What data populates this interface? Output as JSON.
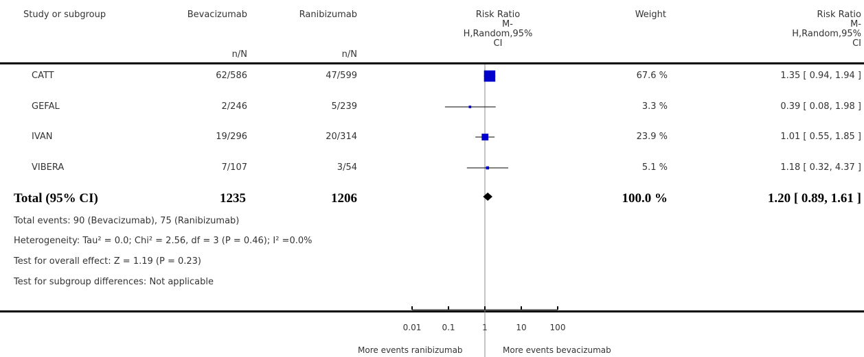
{
  "header": {
    "study": "Study or subgroup",
    "group1": "Bevacizumab",
    "group2": "Ranibizumab",
    "nN1": "n/N",
    "nN2": "n/N",
    "rr_plot": [
      "Risk Ratio",
      "M-",
      "H,Random,95%",
      "CI"
    ],
    "weight": "Weight",
    "rr_text": [
      "Risk Ratio",
      "M-",
      "H,Random,95%",
      "CI"
    ]
  },
  "rows": [
    {
      "study": "CATT",
      "g1": "62/586",
      "g2": "47/599",
      "weight": "67.6 %",
      "ci": "1.35 [ 0.94, 1.94 ]"
    },
    {
      "study": "GEFAL",
      "g1": "2/246",
      "g2": "5/239",
      "weight": "3.3 %",
      "ci": "0.39 [ 0.08, 1.98 ]"
    },
    {
      "study": "IVAN",
      "g1": "19/296",
      "g2": "20/314",
      "weight": "23.9 %",
      "ci": "1.01 [ 0.55, 1.85 ]"
    },
    {
      "study": "VIBERA",
      "g1": "7/107",
      "g2": "3/54",
      "weight": "5.1 %",
      "ci": "1.18 [ 0.32, 4.37 ]"
    }
  ],
  "total": {
    "label": "Total (95% CI)",
    "g1": "1235",
    "g2": "1206",
    "weight": "100.0 %",
    "ci": "1.20 [ 0.89, 1.61 ]"
  },
  "footnotes": [
    "Total events: 90 (Bevacizumab), 75 (Ranibizumab)",
    "Heterogeneity: Tau² = 0.0; Chi² = 2.56, df = 3 (P = 0.46); I² =0.0%",
    "Test for overall effect: Z = 1.19 (P = 0.23)",
    "Test for subgroup differences: Not applicable"
  ],
  "axis": {
    "left_label": "More events ranibizumab",
    "right_label": "More events bevacizumab"
  },
  "colors": {
    "marker": "#0000cc",
    "line": "#000000",
    "centerline": "#888888"
  },
  "chart_data": {
    "type": "forest",
    "scale": "log",
    "xlim": [
      0.01,
      100
    ],
    "ticks": [
      0.01,
      0.1,
      1,
      10,
      100
    ],
    "tick_labels": [
      "0.01",
      "0.1",
      "1",
      "10",
      "100"
    ],
    "studies": [
      {
        "name": "CATT",
        "rr": 1.35,
        "lower": 0.94,
        "upper": 1.94,
        "weight": 67.6
      },
      {
        "name": "GEFAL",
        "rr": 0.39,
        "lower": 0.08,
        "upper": 1.98,
        "weight": 3.3
      },
      {
        "name": "IVAN",
        "rr": 1.01,
        "lower": 0.55,
        "upper": 1.85,
        "weight": 23.9
      },
      {
        "name": "VIBERA",
        "rr": 1.18,
        "lower": 0.32,
        "upper": 4.37,
        "weight": 5.1
      }
    ],
    "pooled": {
      "rr": 1.2,
      "lower": 0.89,
      "upper": 1.61
    }
  }
}
